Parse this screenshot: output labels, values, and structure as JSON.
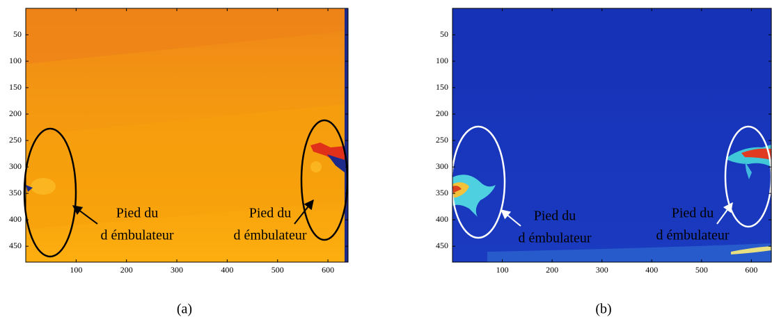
{
  "chart_data": [
    {
      "type": "image",
      "caption": "(a)",
      "xlim": [
        0,
        640
      ],
      "ylim": [
        480,
        0
      ],
      "xticks": [
        100,
        200,
        300,
        400,
        500,
        600
      ],
      "yticks": [
        50,
        100,
        150,
        200,
        250,
        300,
        350,
        400,
        450
      ],
      "annotations": [
        [
          "Pied du",
          "d émbulateur"
        ],
        [
          "Pied du",
          "d émbulateur"
        ]
      ]
    },
    {
      "type": "image",
      "caption": "(b)",
      "xlim": [
        0,
        640
      ],
      "ylim": [
        480,
        0
      ],
      "xticks": [
        100,
        200,
        300,
        400,
        500,
        600
      ],
      "yticks": [
        50,
        100,
        150,
        200,
        250,
        300,
        350,
        400,
        450
      ],
      "annotations": [
        [
          "Pied du",
          "d émbulateur"
        ],
        [
          "Pied du",
          "d émbulateur"
        ]
      ]
    }
  ]
}
